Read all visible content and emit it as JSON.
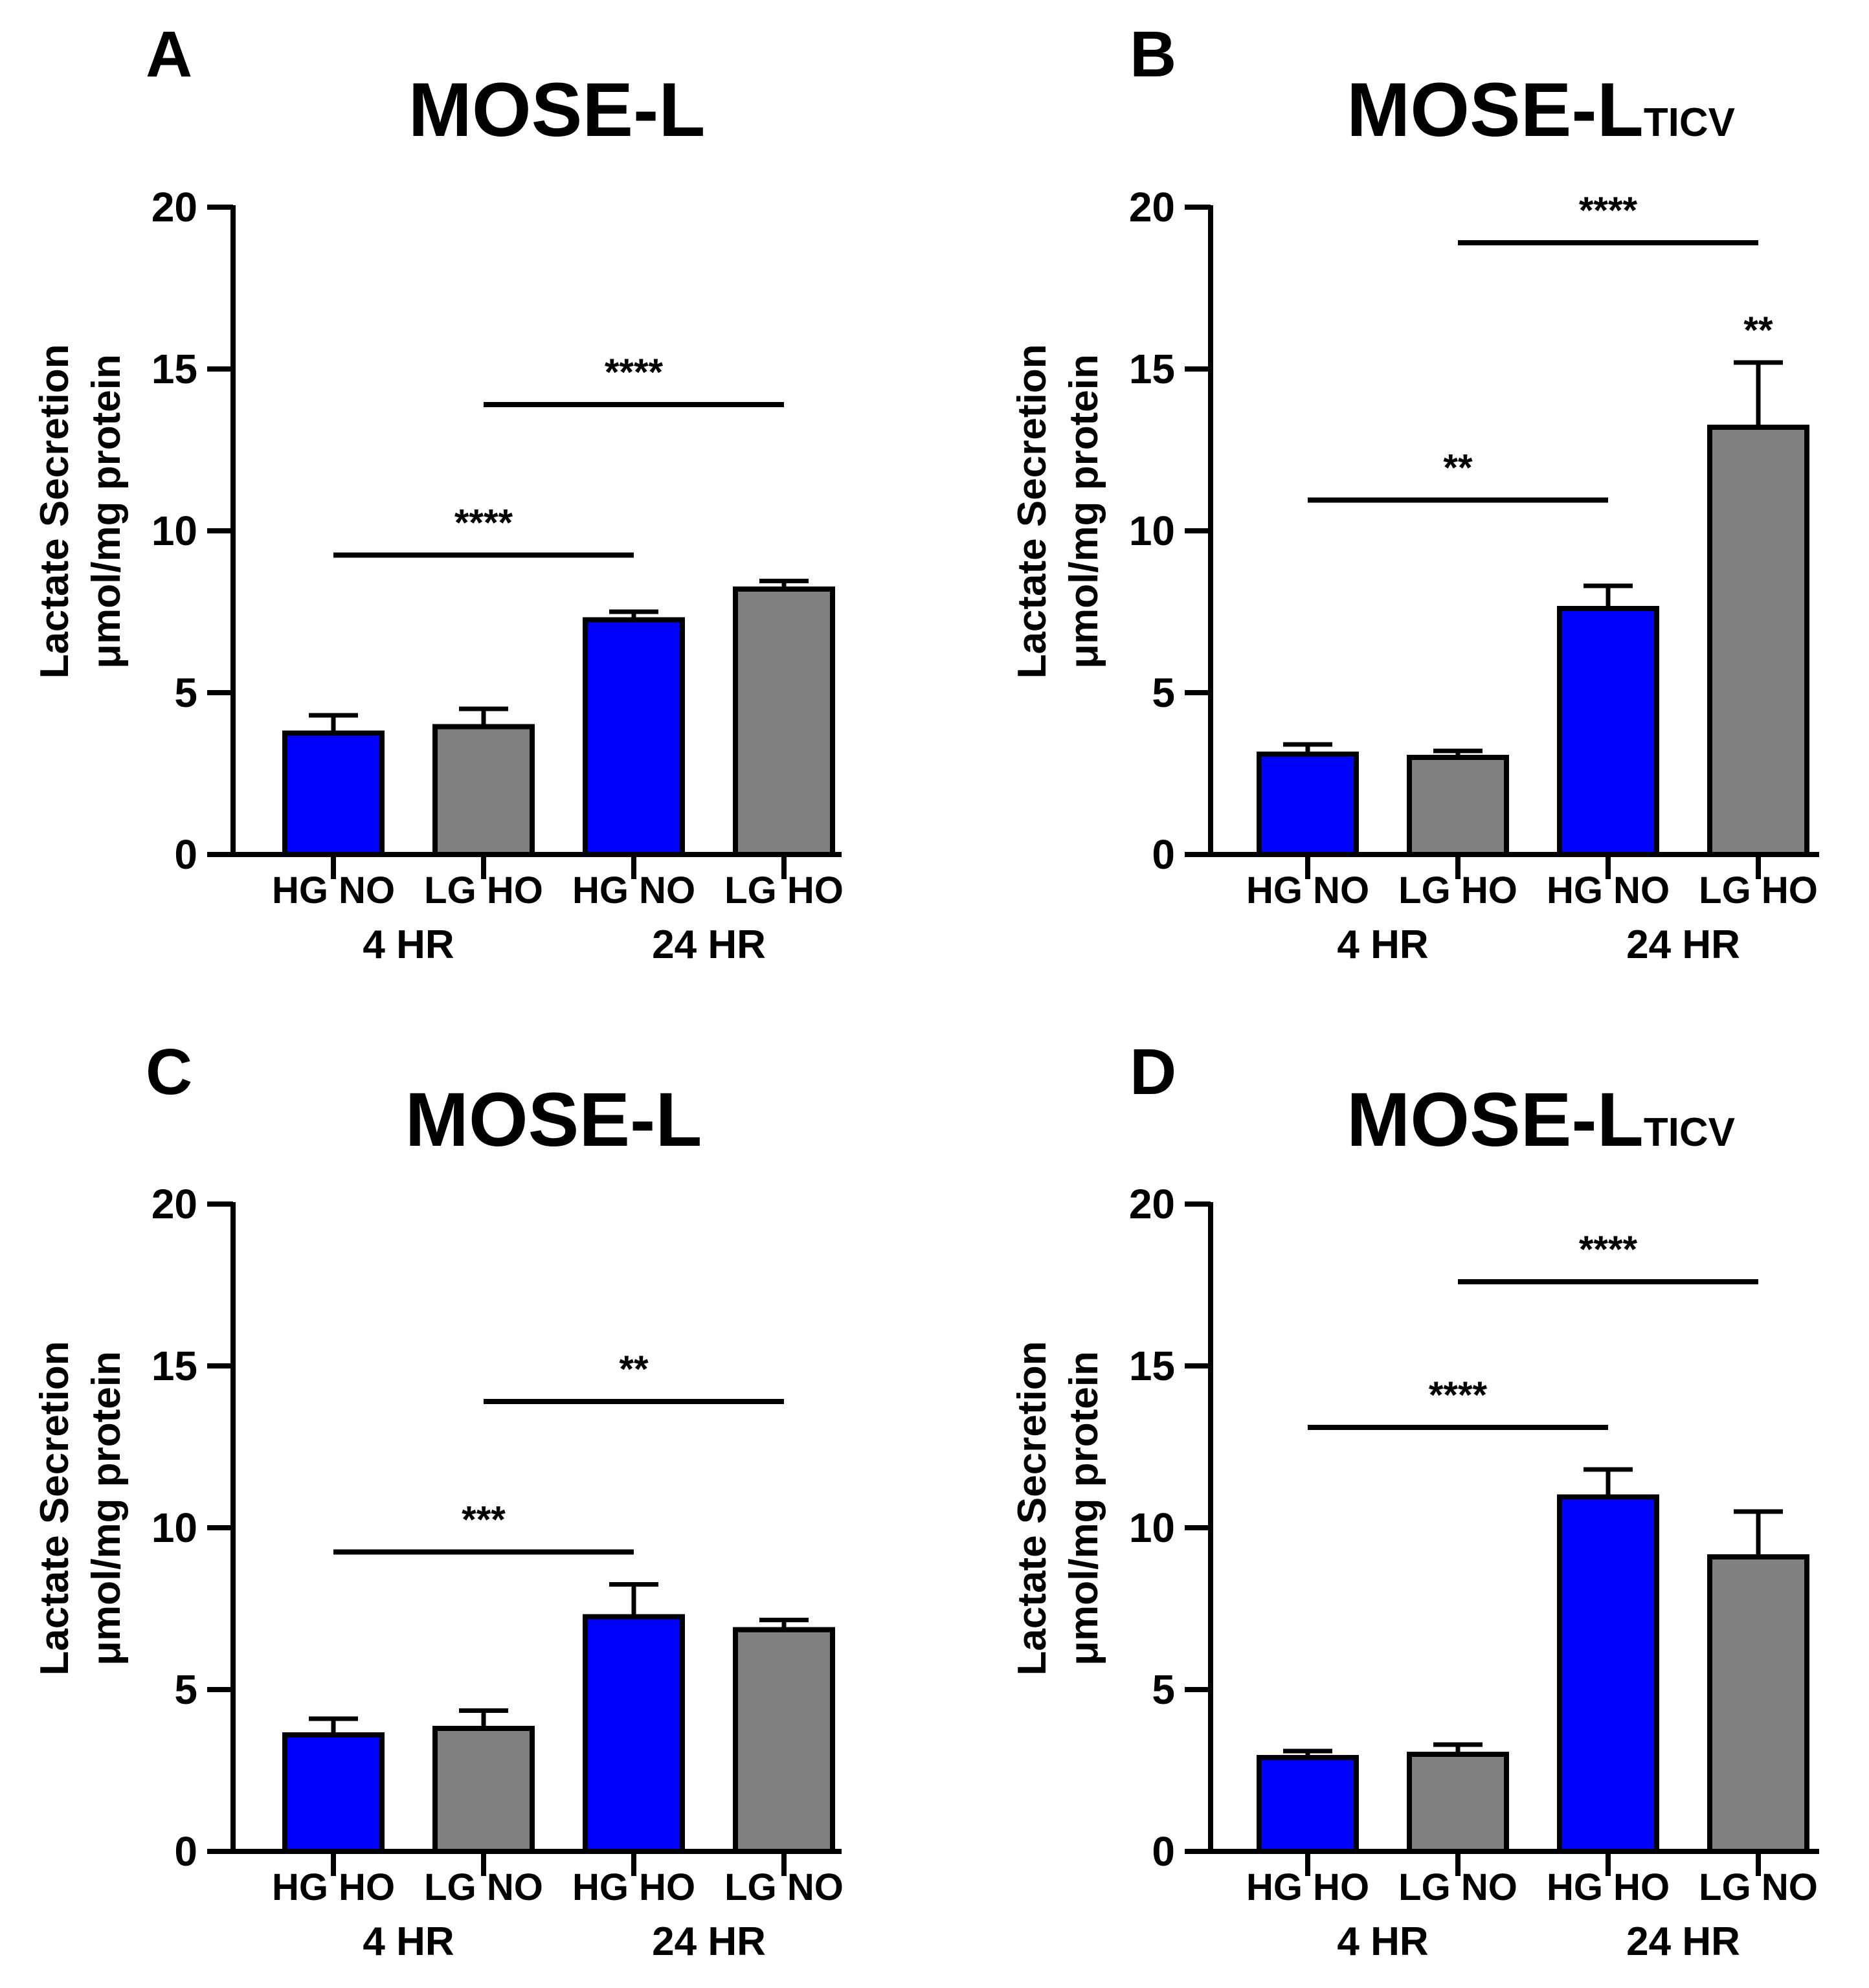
{
  "colors": {
    "blue": "#0000FF",
    "gray": "#808080",
    "stroke": "#000000"
  },
  "chart_data": [
    {
      "panel": "A",
      "type": "bar",
      "title": "MOSE-L",
      "title_sub": "",
      "ylabel1": "Lactate Secretion",
      "ylabel2": "μmol/mg protein",
      "ylim": [
        0,
        20
      ],
      "yticks": [
        "0",
        "5",
        "10",
        "15",
        "20"
      ],
      "categories": [
        "HG NO",
        "LG HO",
        "HG NO",
        "LG HO"
      ],
      "values": [
        3.75,
        3.95,
        7.25,
        8.2
      ],
      "errors": [
        0.55,
        0.55,
        0.25,
        0.25
      ],
      "bar_colors": [
        "blue",
        "gray",
        "blue",
        "gray"
      ],
      "groups": [
        "4 HR",
        "24 HR"
      ],
      "significance": [
        {
          "from": 0,
          "to": 2,
          "label": "****",
          "y": 9.25
        },
        {
          "from": 1,
          "to": 3,
          "label": "****",
          "y": 13.9
        }
      ],
      "bar_stars": []
    },
    {
      "panel": "B",
      "type": "bar",
      "title": "MOSE-L",
      "title_sub": "TICV",
      "ylabel1": "Lactate Secretion",
      "ylabel2": "μmol/mg protein",
      "ylim": [
        0,
        20
      ],
      "yticks": [
        "0",
        "5",
        "10",
        "15",
        "20"
      ],
      "categories": [
        "HG NO",
        "LG HO",
        "HG NO",
        "LG HO"
      ],
      "values": [
        3.1,
        3.0,
        7.6,
        13.2
      ],
      "errors": [
        0.3,
        0.2,
        0.7,
        2.0
      ],
      "bar_colors": [
        "blue",
        "gray",
        "blue",
        "gray"
      ],
      "groups": [
        "4 HR",
        "24 HR"
      ],
      "significance": [
        {
          "from": 0,
          "to": 2,
          "label": "**",
          "y": 10.95
        },
        {
          "from": 1,
          "to": 3,
          "label": "****",
          "y": 18.9
        }
      ],
      "bar_stars": [
        {
          "bar": 3,
          "label": "**"
        }
      ]
    },
    {
      "panel": "C",
      "type": "bar",
      "title": "MOSE-L",
      "title_sub": "",
      "ylabel1": "Lactate Secretion",
      "ylabel2": "μmol/mg protein",
      "ylim": [
        0,
        20
      ],
      "yticks": [
        "0",
        "5",
        "10",
        "15",
        "20"
      ],
      "categories": [
        "HG HO",
        "LG NO",
        "HG HO",
        "LG NO"
      ],
      "values": [
        3.6,
        3.8,
        7.25,
        6.85
      ],
      "errors": [
        0.5,
        0.55,
        1.0,
        0.3
      ],
      "bar_colors": [
        "blue",
        "gray",
        "blue",
        "gray"
      ],
      "groups": [
        "4 HR",
        "24 HR"
      ],
      "significance": [
        {
          "from": 0,
          "to": 2,
          "label": "***",
          "y": 9.25
        },
        {
          "from": 1,
          "to": 3,
          "label": "**",
          "y": 13.9
        }
      ],
      "bar_stars": []
    },
    {
      "panel": "D",
      "type": "bar",
      "title": "MOSE-L",
      "title_sub": "TICV",
      "ylabel1": "Lactate Secretion",
      "ylabel2": "μmol/mg protein",
      "ylim": [
        0,
        20
      ],
      "yticks": [
        "0",
        "5",
        "10",
        "15",
        "20"
      ],
      "categories": [
        "HG HO",
        "LG NO",
        "HG HO",
        "LG NO"
      ],
      "values": [
        2.9,
        3.0,
        10.95,
        9.1
      ],
      "errors": [
        0.2,
        0.3,
        0.85,
        1.4
      ],
      "bar_colors": [
        "blue",
        "gray",
        "blue",
        "gray"
      ],
      "groups": [
        "4 HR",
        "24 HR"
      ],
      "significance": [
        {
          "from": 0,
          "to": 2,
          "label": "****",
          "y": 13.1
        },
        {
          "from": 1,
          "to": 3,
          "label": "****",
          "y": 17.6
        }
      ],
      "bar_stars": []
    }
  ]
}
